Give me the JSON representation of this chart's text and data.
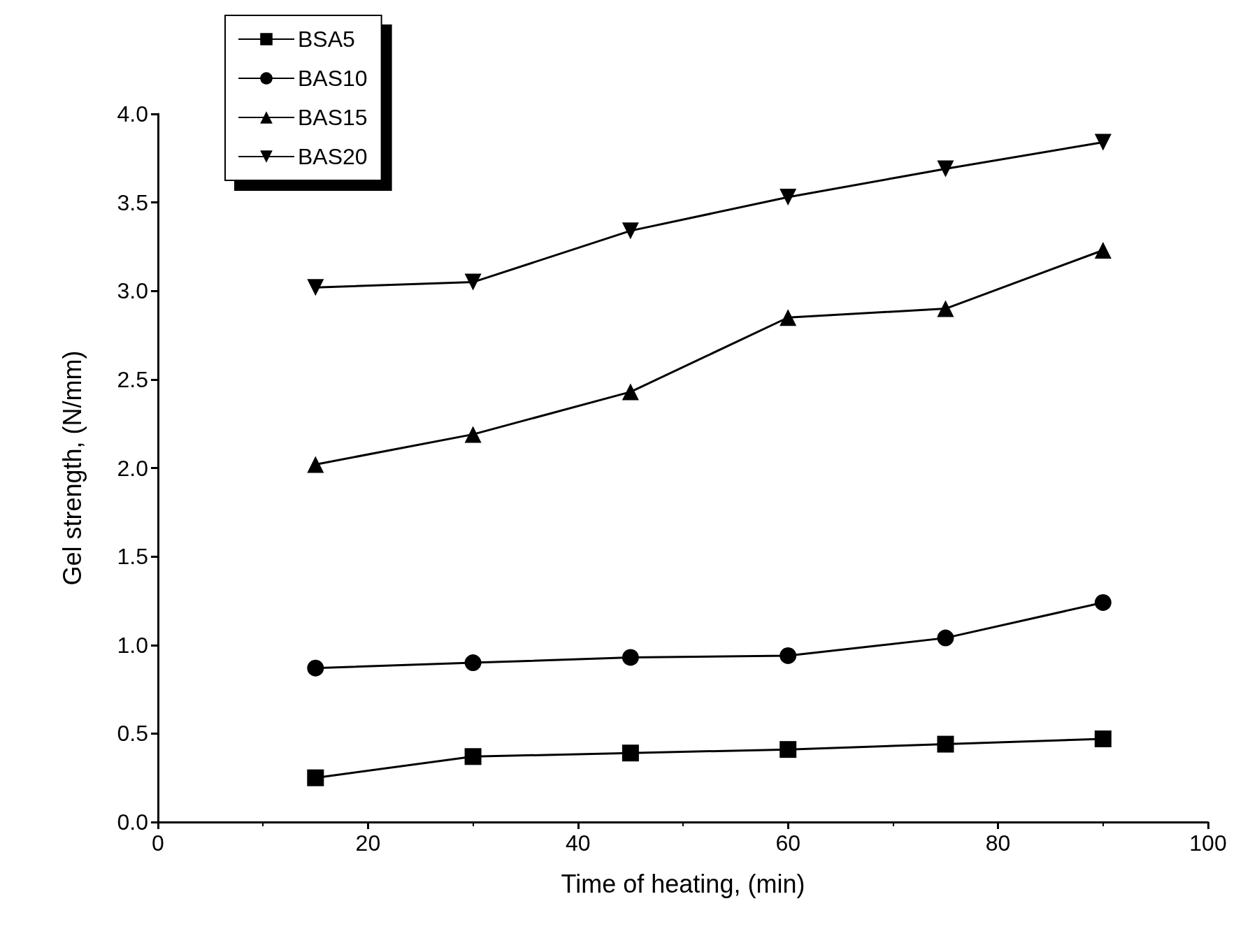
{
  "chart_data": {
    "type": "line",
    "xlabel": "Time of heating, (min)",
    "ylabel": "Gel strength, (N/mm)",
    "x": [
      15,
      30,
      45,
      60,
      75,
      90
    ],
    "series": [
      {
        "name": "BSA5",
        "color": "#000000",
        "marker": "square",
        "values": [
          0.25,
          0.37,
          0.39,
          0.41,
          0.44,
          0.47
        ]
      },
      {
        "name": "BAS10",
        "color": "#000000",
        "marker": "circle",
        "values": [
          0.87,
          0.9,
          0.93,
          0.94,
          1.04,
          1.24
        ]
      },
      {
        "name": "BAS15",
        "color": "#000000",
        "marker": "triangle",
        "values": [
          2.02,
          2.19,
          2.43,
          2.85,
          2.9,
          3.23
        ]
      },
      {
        "name": "BAS20",
        "color": "#000000",
        "marker": "triangle-down",
        "values": [
          3.02,
          3.05,
          3.34,
          3.53,
          3.69,
          3.84
        ]
      }
    ],
    "xlim": [
      0,
      100
    ],
    "xticks": [
      0,
      20,
      40,
      60,
      80,
      100
    ],
    "ylim": [
      0,
      4
    ],
    "yticks": [
      {
        "value": 0,
        "label": "0.0"
      },
      {
        "value": 0.5,
        "label": "0.5"
      },
      {
        "value": 1,
        "label": "1.0"
      },
      {
        "value": 1.5,
        "label": "1.5"
      },
      {
        "value": 2,
        "label": "2.0"
      },
      {
        "value": 2.5,
        "label": "2.5"
      },
      {
        "value": 3,
        "label": "3.0"
      },
      {
        "value": 3.5,
        "label": "3.5"
      },
      {
        "value": 4,
        "label": "4.0"
      }
    ],
    "grid": false,
    "legend": "top left",
    "line_style": "solid"
  }
}
